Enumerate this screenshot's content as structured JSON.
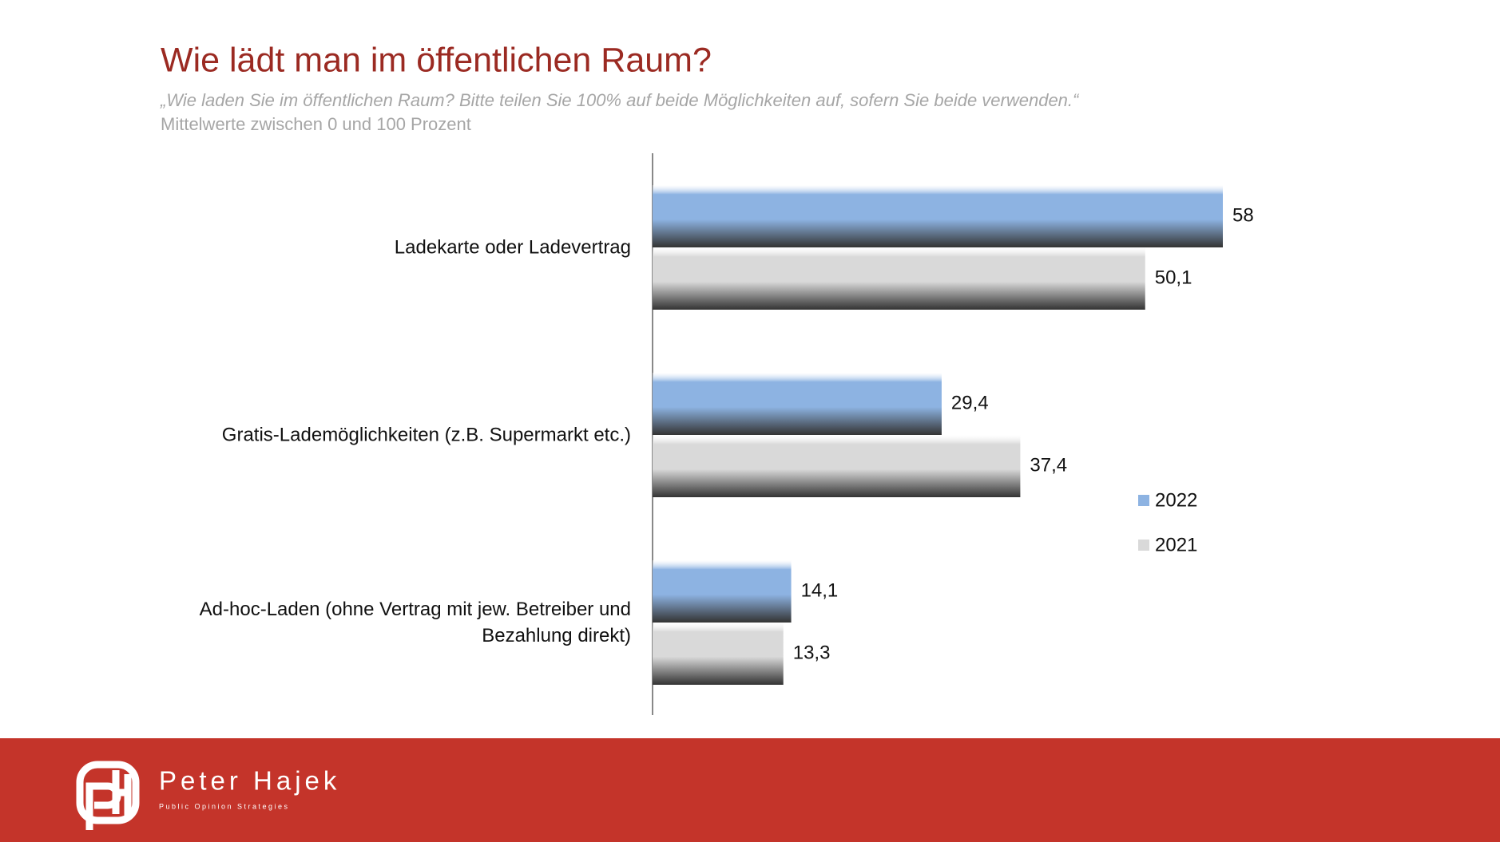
{
  "chart_data": {
    "type": "bar",
    "orientation": "horizontal",
    "title": "Wie lädt man im öffentlichen Raum?",
    "subtitle": "„Wie laden Sie im öffentlichen Raum? Bitte teilen Sie 100% auf beide Möglichkeiten auf, sofern Sie beide verwenden.“",
    "caption": "Mittelwerte zwischen 0 und 100 Prozent",
    "categories": [
      "Ladekarte oder Ladevertrag",
      "Gratis-Lademöglichkeiten (z.B. Supermarkt etc.)",
      "Ad-hoc-Laden (ohne Vertrag mit jew. Betreiber und Bezahlung direkt)"
    ],
    "series": [
      {
        "name": "2022",
        "color": "#8db3e2",
        "values": [
          58,
          29.4,
          14.1
        ],
        "value_labels": [
          "58",
          "29,4",
          "14,1"
        ]
      },
      {
        "name": "2021",
        "color": "#d9d9d9",
        "values": [
          50.1,
          37.4,
          13.3
        ],
        "value_labels": [
          "50,1",
          "37,4",
          "13,3"
        ]
      }
    ],
    "legend": "right"
  },
  "footer": {
    "brand": "Peter Hajek",
    "tagline": "Public Opinion Strategies"
  }
}
